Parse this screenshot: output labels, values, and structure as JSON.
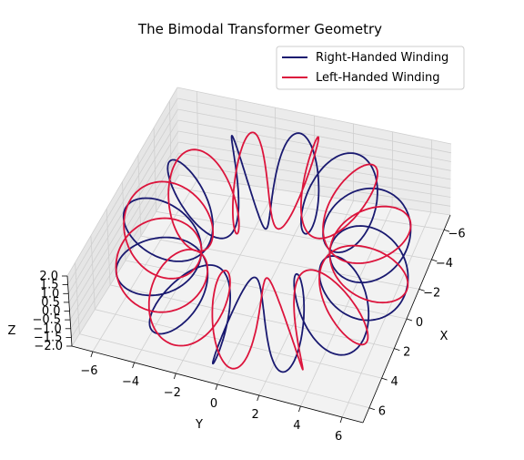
{
  "chart_data": {
    "type": "line",
    "projection": "3d",
    "title": "The Bimodal Transformer Geometry",
    "xlabel": "X",
    "ylabel": "Y",
    "zlabel": "Z",
    "xlim": [
      -7,
      7
    ],
    "ylim": [
      -7,
      7
    ],
    "zlim": [
      -2,
      2
    ],
    "xticks": [
      "6",
      "4",
      "2",
      "0",
      "−2",
      "−4",
      "−6"
    ],
    "yticks": [
      "−6",
      "−4",
      "−2",
      "0",
      "2",
      "4",
      "6"
    ],
    "zticks": [
      "2.0",
      "1.5",
      "1.0",
      "0.5",
      "0.0",
      "−0.5",
      "−1.0",
      "−1.5",
      "−2.0"
    ],
    "grid": true,
    "legend_placement": "top-right",
    "surface": {
      "shape": "torus",
      "major_radius": 5,
      "minor_radius": 2,
      "winding_p": 1,
      "winding_q": 12
    },
    "series": [
      {
        "name": "Right-Handed Winding",
        "color": "#191970",
        "handedness": "right"
      },
      {
        "name": "Left-Handed Winding",
        "color": "#dc143c",
        "handedness": "left"
      }
    ]
  }
}
